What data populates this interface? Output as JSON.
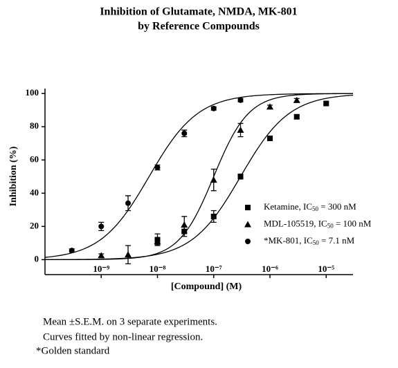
{
  "chart_data": {
    "type": "scatter",
    "title": [
      "Inhibition of  Glutamate, NMDA, MK-801",
      "by Reference Compounds"
    ],
    "x_label": "[Compound] (M)",
    "y_label": "Inhibition (%)",
    "x_scale": "log",
    "xlim": [
      1e-10,
      3e-05
    ],
    "ylim": [
      -9,
      103
    ],
    "xticks": [
      {
        "value": 1e-09,
        "label": "10⁻⁹"
      },
      {
        "value": 1e-08,
        "label": "10⁻⁸"
      },
      {
        "value": 1e-07,
        "label": "10⁻⁷"
      },
      {
        "value": 1e-06,
        "label": "10⁻⁶"
      },
      {
        "value": 1e-05,
        "label": "10⁻⁵"
      }
    ],
    "yticks": [
      0,
      20,
      40,
      60,
      80,
      100
    ],
    "series": [
      {
        "name": "Ketamine, IC50 = 300 nM",
        "marker": "square",
        "color": "#000000",
        "ic50": 3e-07,
        "hill": 1.0,
        "x": [
          1e-08,
          3e-08,
          1e-07,
          3e-07,
          1e-06,
          3e-06,
          1e-05
        ],
        "values": [
          12,
          17,
          26,
          50,
          73,
          86,
          94
        ],
        "errors": [
          3.5,
          3,
          3.5,
          1.5,
          1,
          1,
          1
        ]
      },
      {
        "name": "MDL-105519, IC50 = 100 nM",
        "marker": "triangle",
        "color": "#000000",
        "ic50": 1e-07,
        "hill": 1.4,
        "x": [
          1e-09,
          3e-09,
          1e-08,
          3e-08,
          1e-07,
          3e-07,
          1e-06,
          3e-06
        ],
        "values": [
          2.5,
          3,
          11,
          21,
          48,
          78,
          92,
          96
        ],
        "errors": [
          1,
          5.5,
          2,
          5,
          6.5,
          4,
          1,
          1
        ]
      },
      {
        "name": "*MK-801, IC50 = 7.1 nM",
        "marker": "circle",
        "color": "#000000",
        "ic50": 7.1e-09,
        "hill": 1.0,
        "x": [
          3e-10,
          1e-09,
          3e-09,
          1e-08,
          3e-08,
          1e-07,
          3e-07
        ],
        "values": [
          5.5,
          20,
          34,
          55.5,
          76,
          91,
          96
        ],
        "errors": [
          1,
          2.5,
          4.5,
          1.5,
          2,
          1,
          1
        ]
      }
    ],
    "notes": [
      "Mean  ±S.E.M. on 3  separate experiments.",
      "Curves fitted by non-linear regression.",
      "*Golden standard"
    ]
  }
}
